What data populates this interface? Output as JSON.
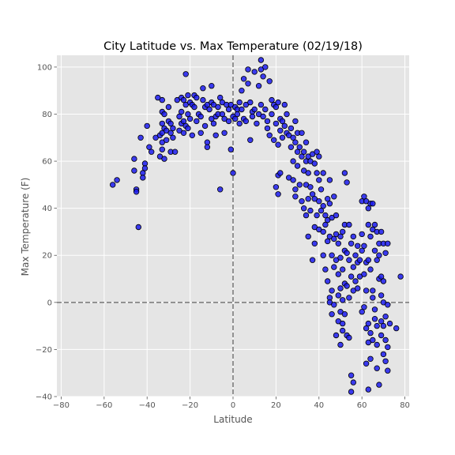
{
  "chart_data": {
    "type": "scatter",
    "title": "City Latitude vs. Max Temperature (02/19/18)",
    "xlabel": "Latitude",
    "ylabel": "Max Temperature (F)",
    "xlim": [
      -82,
      82
    ],
    "ylim": [
      -40,
      105
    ],
    "xticks": [
      -80,
      -60,
      -40,
      -20,
      0,
      20,
      40,
      60,
      80
    ],
    "yticks": [
      -40,
      -20,
      0,
      20,
      40,
      60,
      80,
      100
    ],
    "grid": true,
    "reference_lines": {
      "x": 0,
      "y": 0
    },
    "colors": {
      "plot_background": "#e5e5e5",
      "grid": "#ffffff",
      "marker_fill": "#1c1cf0",
      "marker_edge": "#000000",
      "reference_line": "#777777"
    },
    "points": [
      [
        -56,
        50
      ],
      [
        -54,
        52
      ],
      [
        -46,
        61
      ],
      [
        -46,
        56
      ],
      [
        -45,
        48
      ],
      [
        -45,
        47
      ],
      [
        -44,
        32
      ],
      [
        -43,
        70
      ],
      [
        -42,
        55
      ],
      [
        -42,
        53
      ],
      [
        -41,
        59
      ],
      [
        -41,
        57
      ],
      [
        -40,
        75
      ],
      [
        -39,
        66
      ],
      [
        -38,
        64
      ],
      [
        -36,
        70
      ],
      [
        -35,
        87
      ],
      [
        -34,
        71
      ],
      [
        -34,
        62
      ],
      [
        -33,
        86
      ],
      [
        -33,
        81
      ],
      [
        -33,
        76
      ],
      [
        -33,
        72
      ],
      [
        -33,
        68
      ],
      [
        -33,
        65
      ],
      [
        -32,
        80
      ],
      [
        -32,
        74
      ],
      [
        -32,
        61
      ],
      [
        -31,
        73
      ],
      [
        -31,
        69
      ],
      [
        -30,
        83
      ],
      [
        -30,
        77
      ],
      [
        -29,
        76
      ],
      [
        -29,
        72
      ],
      [
        -29,
        64
      ],
      [
        -28,
        74
      ],
      [
        -28,
        70
      ],
      [
        -27,
        64
      ],
      [
        -26,
        86
      ],
      [
        -25,
        79
      ],
      [
        -25,
        73
      ],
      [
        -24,
        87
      ],
      [
        -24,
        81
      ],
      [
        -24,
        76
      ],
      [
        -23,
        86
      ],
      [
        -23,
        77
      ],
      [
        -23,
        72
      ],
      [
        -22,
        97
      ],
      [
        -22,
        84
      ],
      [
        -22,
        75
      ],
      [
        -21,
        88
      ],
      [
        -21,
        80
      ],
      [
        -21,
        74
      ],
      [
        -20,
        85
      ],
      [
        -20,
        78
      ],
      [
        -19,
        84
      ],
      [
        -19,
        71
      ],
      [
        -18,
        88
      ],
      [
        -18,
        83
      ],
      [
        -17,
        87
      ],
      [
        -17,
        77
      ],
      [
        -16,
        80
      ],
      [
        -15,
        79
      ],
      [
        -15,
        72
      ],
      [
        -14,
        91
      ],
      [
        -14,
        86
      ],
      [
        -13,
        83
      ],
      [
        -13,
        75
      ],
      [
        -12,
        84
      ],
      [
        -12,
        68
      ],
      [
        -12,
        66
      ],
      [
        -11,
        82
      ],
      [
        -10,
        85
      ],
      [
        -10,
        78
      ],
      [
        -10,
        92
      ],
      [
        -9,
        84
      ],
      [
        -9,
        76
      ],
      [
        -8,
        79
      ],
      [
        -8,
        71
      ],
      [
        -7,
        83
      ],
      [
        -7,
        80
      ],
      [
        -6,
        87
      ],
      [
        -6,
        48
      ],
      [
        -5,
        85
      ],
      [
        -5,
        80
      ],
      [
        -4,
        78
      ],
      [
        -4,
        72
      ],
      [
        -3,
        84
      ],
      [
        -2,
        82
      ],
      [
        -2,
        77
      ],
      [
        -1,
        84
      ],
      [
        -1,
        65
      ],
      [
        0,
        79
      ],
      [
        0,
        55
      ],
      [
        1,
        83
      ],
      [
        1,
        78
      ],
      [
        2,
        82
      ],
      [
        2,
        80
      ],
      [
        3,
        85
      ],
      [
        3,
        76
      ],
      [
        4,
        90
      ],
      [
        4,
        82
      ],
      [
        5,
        95
      ],
      [
        5,
        78
      ],
      [
        6,
        84
      ],
      [
        6,
        77
      ],
      [
        7,
        99
      ],
      [
        7,
        93
      ],
      [
        8,
        85
      ],
      [
        8,
        69
      ],
      [
        9,
        81
      ],
      [
        9,
        79
      ],
      [
        10,
        98
      ],
      [
        10,
        82
      ],
      [
        11,
        76
      ],
      [
        12,
        80
      ],
      [
        12,
        92
      ],
      [
        13,
        103
      ],
      [
        13,
        99
      ],
      [
        13,
        84
      ],
      [
        14,
        96
      ],
      [
        14,
        79
      ],
      [
        15,
        100
      ],
      [
        15,
        82
      ],
      [
        16,
        77
      ],
      [
        16,
        74
      ],
      [
        17,
        94
      ],
      [
        17,
        71
      ],
      [
        18,
        86
      ],
      [
        18,
        80
      ],
      [
        19,
        84
      ],
      [
        19,
        69
      ],
      [
        20,
        83
      ],
      [
        20,
        76
      ],
      [
        20,
        49
      ],
      [
        21,
        85
      ],
      [
        21,
        67
      ],
      [
        21,
        54
      ],
      [
        21,
        46
      ],
      [
        22,
        78
      ],
      [
        22,
        73
      ],
      [
        22,
        55
      ],
      [
        23,
        77
      ],
      [
        23,
        70
      ],
      [
        24,
        84
      ],
      [
        24,
        75
      ],
      [
        25,
        80
      ],
      [
        25,
        72
      ],
      [
        26,
        71
      ],
      [
        26,
        53
      ],
      [
        27,
        74
      ],
      [
        27,
        66
      ],
      [
        28,
        70
      ],
      [
        28,
        60
      ],
      [
        28,
        52
      ],
      [
        29,
        77
      ],
      [
        29,
        68
      ],
      [
        29,
        48
      ],
      [
        29,
        45
      ],
      [
        30,
        72
      ],
      [
        30,
        64
      ],
      [
        30,
        58
      ],
      [
        31,
        66
      ],
      [
        31,
        50
      ],
      [
        32,
        72
      ],
      [
        32,
        62
      ],
      [
        32,
        43
      ],
      [
        33,
        64
      ],
      [
        33,
        56
      ],
      [
        33,
        40
      ],
      [
        34,
        68
      ],
      [
        34,
        60
      ],
      [
        34,
        50
      ],
      [
        34,
        37
      ],
      [
        35,
        62
      ],
      [
        35,
        55
      ],
      [
        35,
        44
      ],
      [
        35,
        28
      ],
      [
        36,
        60
      ],
      [
        36,
        49
      ],
      [
        36,
        39
      ],
      [
        37,
        63
      ],
      [
        37,
        46
      ],
      [
        37,
        18
      ],
      [
        38,
        59
      ],
      [
        38,
        44
      ],
      [
        38,
        32
      ],
      [
        38,
        25
      ],
      [
        39,
        64
      ],
      [
        39,
        55
      ],
      [
        39,
        37
      ],
      [
        40,
        62
      ],
      [
        40,
        52
      ],
      [
        40,
        43
      ],
      [
        40,
        31
      ],
      [
        41,
        48
      ],
      [
        41,
        39
      ],
      [
        42,
        55
      ],
      [
        42,
        41
      ],
      [
        42,
        30
      ],
      [
        42,
        20
      ],
      [
        43,
        37
      ],
      [
        43,
        33
      ],
      [
        43,
        14
      ],
      [
        44,
        44
      ],
      [
        44,
        35
      ],
      [
        44,
        26
      ],
      [
        44,
        9
      ],
      [
        45,
        52
      ],
      [
        45,
        42
      ],
      [
        45,
        28
      ],
      [
        45,
        2
      ],
      [
        45,
        0
      ],
      [
        46,
        36
      ],
      [
        46,
        20
      ],
      [
        46,
        5
      ],
      [
        46,
        -5
      ],
      [
        47,
        45
      ],
      [
        47,
        27
      ],
      [
        47,
        15
      ],
      [
        47,
        -1
      ],
      [
        48,
        37
      ],
      [
        48,
        29
      ],
      [
        48,
        18
      ],
      [
        48,
        -14
      ],
      [
        49,
        25
      ],
      [
        49,
        12
      ],
      [
        49,
        3
      ],
      [
        49,
        -8
      ],
      [
        50,
        28
      ],
      [
        50,
        19
      ],
      [
        50,
        6
      ],
      [
        50,
        -4
      ],
      [
        50,
        -18
      ],
      [
        51,
        30
      ],
      [
        51,
        14
      ],
      [
        51,
        1
      ],
      [
        51,
        -9
      ],
      [
        51,
        -12
      ],
      [
        52,
        55
      ],
      [
        52,
        33
      ],
      [
        52,
        22
      ],
      [
        52,
        8
      ],
      [
        52,
        -5
      ],
      [
        53,
        51
      ],
      [
        53,
        21
      ],
      [
        53,
        7
      ],
      [
        53,
        -14
      ],
      [
        54,
        33
      ],
      [
        54,
        18
      ],
      [
        54,
        2
      ],
      [
        54,
        -15
      ],
      [
        55,
        25
      ],
      [
        55,
        11
      ],
      [
        55,
        -31
      ],
      [
        55,
        -38
      ],
      [
        56,
        28
      ],
      [
        56,
        15
      ],
      [
        56,
        5
      ],
      [
        56,
        -34
      ],
      [
        57,
        20
      ],
      [
        57,
        9
      ],
      [
        58,
        24
      ],
      [
        58,
        17
      ],
      [
        58,
        6
      ],
      [
        59,
        18
      ],
      [
        59,
        11
      ],
      [
        60,
        43
      ],
      [
        60,
        29
      ],
      [
        60,
        22
      ],
      [
        60,
        -4
      ],
      [
        61,
        45
      ],
      [
        61,
        24
      ],
      [
        61,
        12
      ],
      [
        61,
        -2
      ],
      [
        62,
        43
      ],
      [
        62,
        17
      ],
      [
        62,
        5
      ],
      [
        62,
        -11
      ],
      [
        62,
        -26
      ],
      [
        63,
        40
      ],
      [
        63,
        33
      ],
      [
        63,
        18
      ],
      [
        63,
        -9
      ],
      [
        63,
        -17
      ],
      [
        63,
        -37
      ],
      [
        64,
        42
      ],
      [
        64,
        28
      ],
      [
        64,
        14
      ],
      [
        64,
        -13
      ],
      [
        64,
        -24
      ],
      [
        65,
        42
      ],
      [
        65,
        31
      ],
      [
        65,
        5
      ],
      [
        65,
        2
      ],
      [
        65,
        -16
      ],
      [
        66,
        33
      ],
      [
        66,
        22
      ],
      [
        66,
        -3
      ],
      [
        66,
        -7
      ],
      [
        67,
        30
      ],
      [
        67,
        18
      ],
      [
        67,
        -10
      ],
      [
        67,
        -18
      ],
      [
        67,
        -28
      ],
      [
        68,
        25
      ],
      [
        68,
        20
      ],
      [
        68,
        10
      ],
      [
        68,
        -35
      ],
      [
        69,
        30
      ],
      [
        69,
        11
      ],
      [
        69,
        3
      ],
      [
        69,
        -8
      ],
      [
        69,
        -14
      ],
      [
        70,
        25
      ],
      [
        70,
        9
      ],
      [
        70,
        0
      ],
      [
        70,
        -10
      ],
      [
        70,
        -22
      ],
      [
        71,
        21
      ],
      [
        71,
        -6
      ],
      [
        71,
        -16
      ],
      [
        71,
        -25
      ],
      [
        72,
        25
      ],
      [
        72,
        -1
      ],
      [
        72,
        -19
      ],
      [
        72,
        -29
      ],
      [
        73,
        -9
      ],
      [
        76,
        -11
      ],
      [
        78,
        11
      ]
    ]
  }
}
